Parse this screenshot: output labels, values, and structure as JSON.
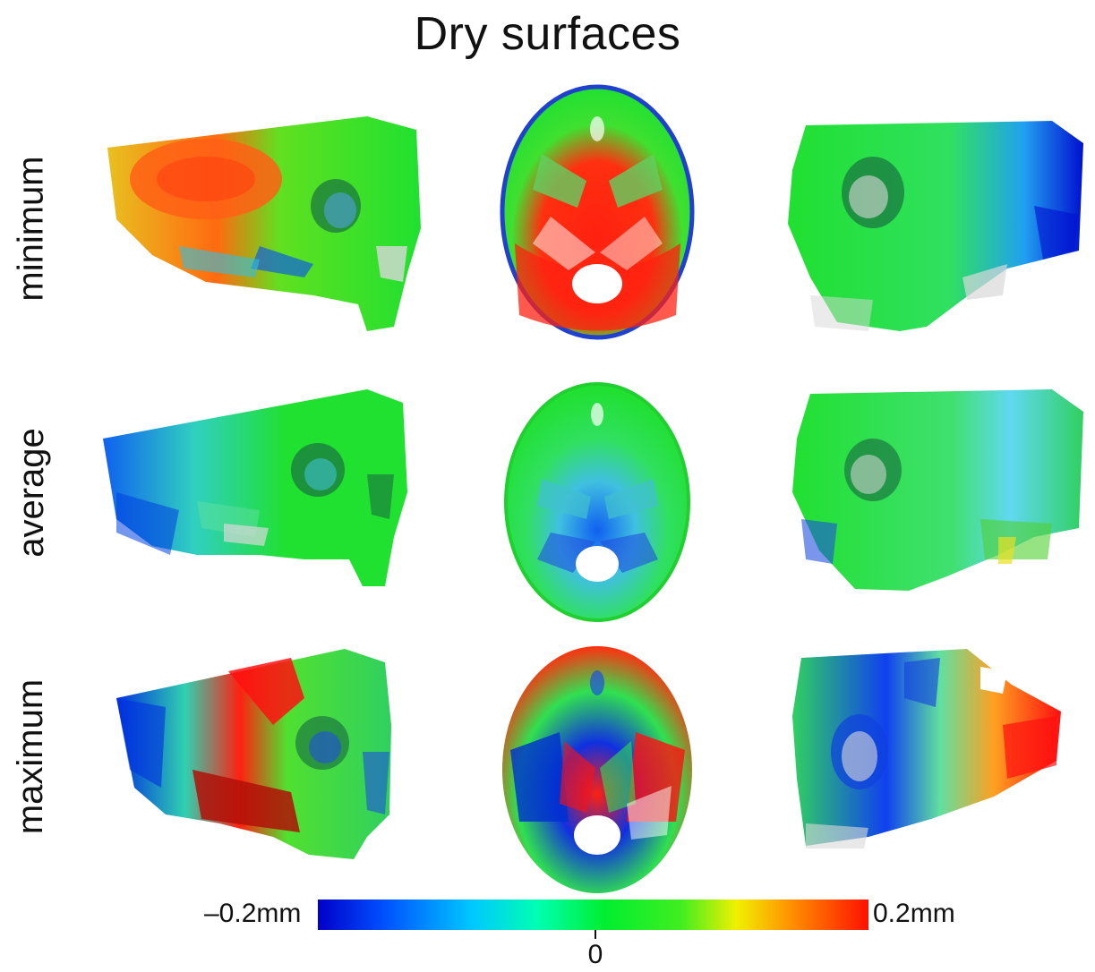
{
  "title": "Dry surfaces",
  "rows": [
    {
      "label": "minimum"
    },
    {
      "label": "average"
    },
    {
      "label": "maximum"
    }
  ],
  "colorbar": {
    "min_label": "–0.2mm",
    "mid_label": "0",
    "max_label": "0.2mm",
    "colors": [
      "#0000c8",
      "#00c8ff",
      "#00ee30",
      "#f0f000",
      "#ff1000"
    ]
  }
}
